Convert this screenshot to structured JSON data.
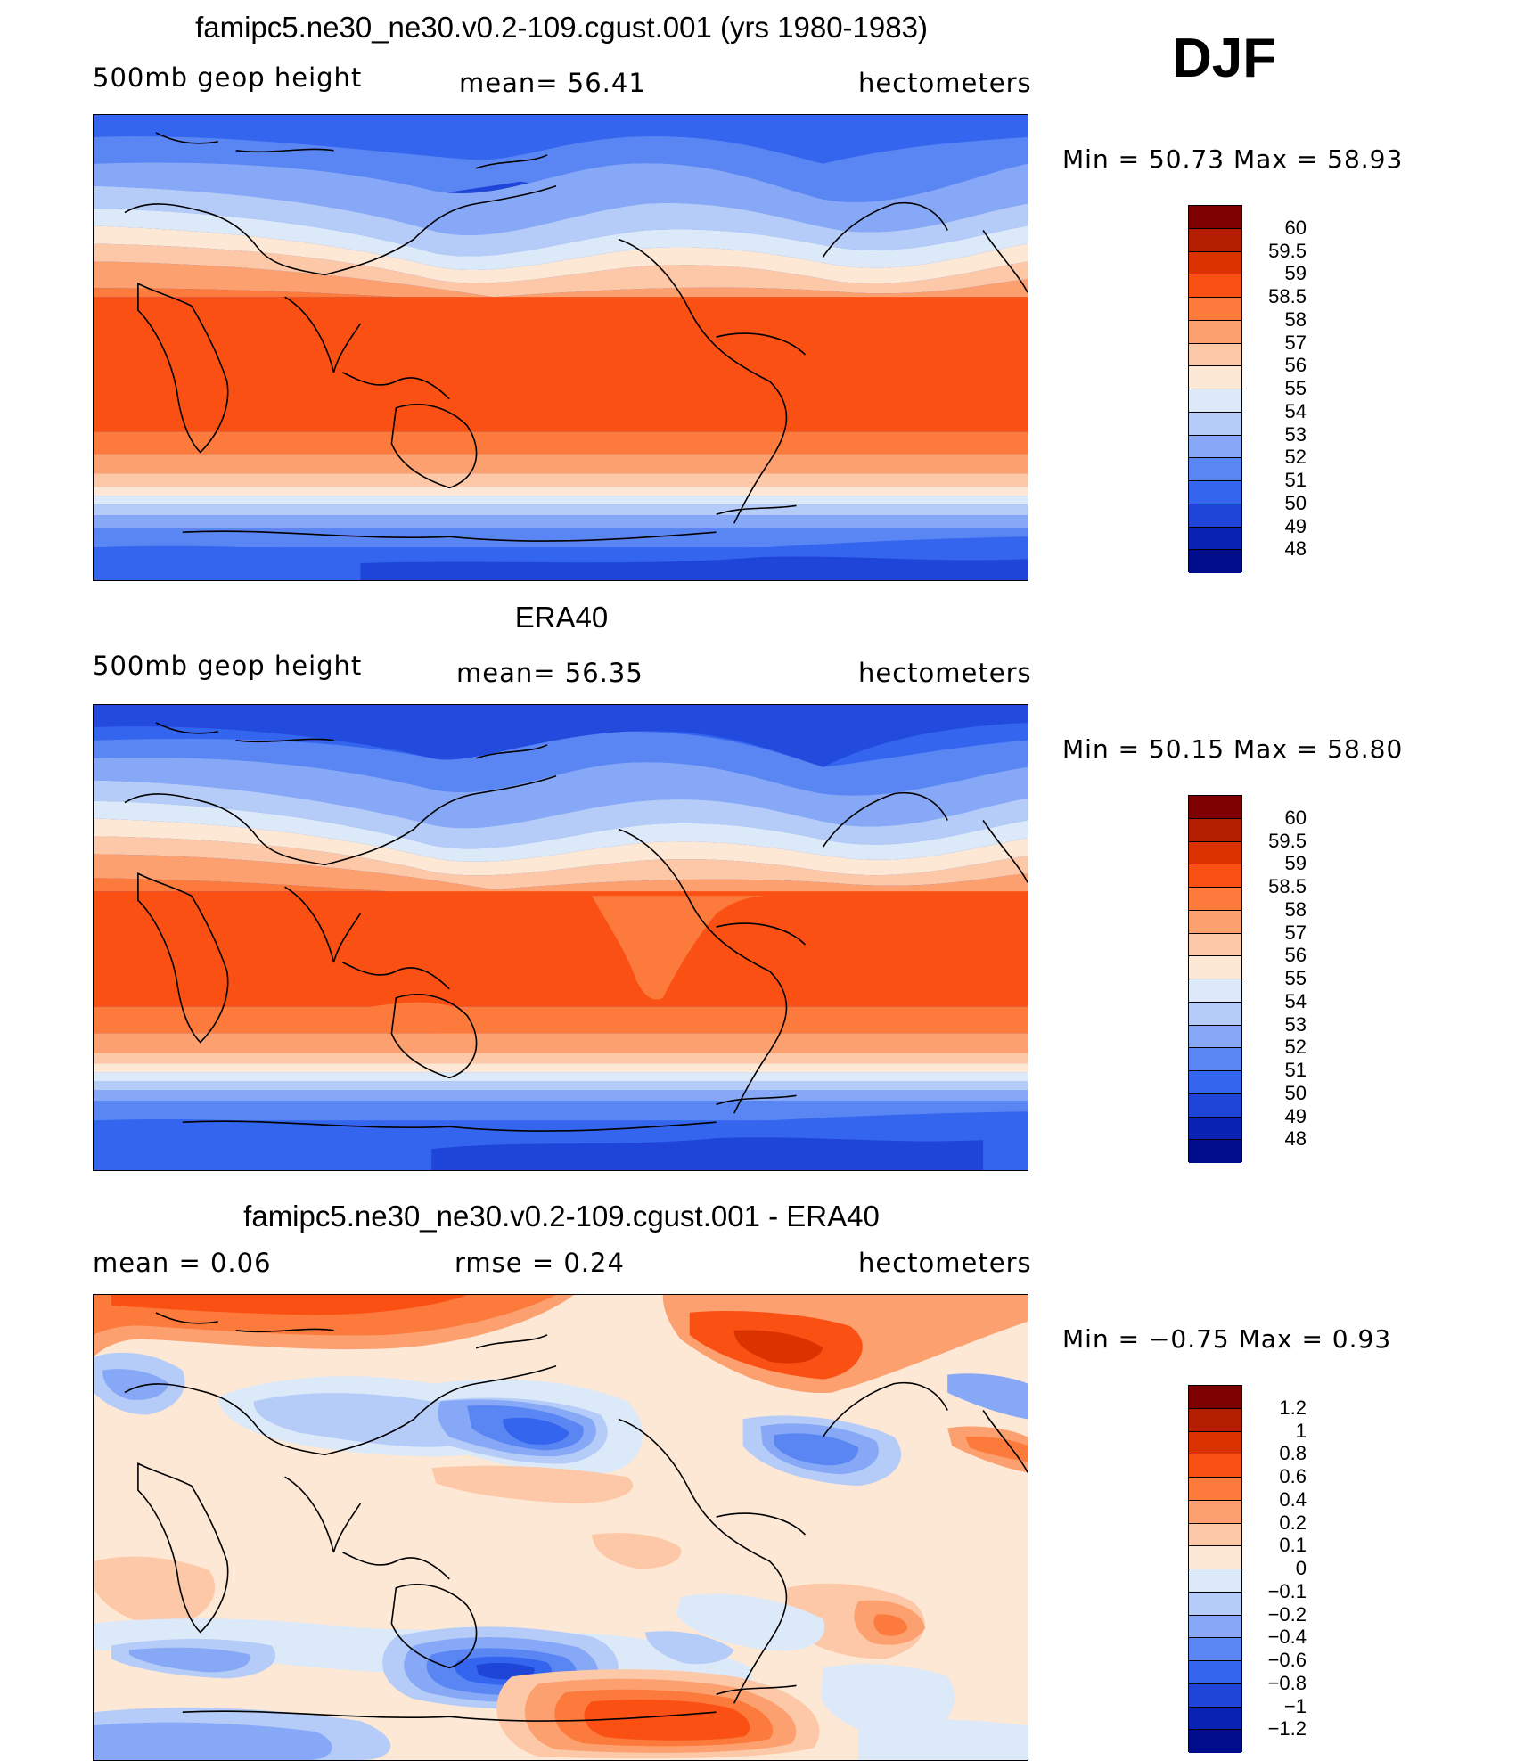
{
  "season": "DJF",
  "panels": [
    {
      "title": "famipc5.ne30_ne30.v0.2-109.cgust.001 (yrs 1980-1983)",
      "left_label": "500mb  geop  height",
      "center_label": "mean=   56.41",
      "right_label": "hectometers",
      "minmax": "Min  =    50.73  Max  =    58.93",
      "colorbar": {
        "levels": [
          "60",
          "59.5",
          "59",
          "58.5",
          "58",
          "57",
          "56",
          "55",
          "54",
          "53",
          "52",
          "51",
          "50",
          "49",
          "48"
        ],
        "colors": [
          "#7f0000",
          "#b31e00",
          "#db3300",
          "#fa5014",
          "#fb7a3c",
          "#fca070",
          "#fdc8a8",
          "#fde8d6",
          "#dce9f9",
          "#b5ccf8",
          "#86a8f6",
          "#5a86f4",
          "#3465ee",
          "#1e44d8",
          "#0a22b4",
          "#000c8c"
        ]
      }
    },
    {
      "title": "ERA40",
      "left_label": "500mb  geop  height",
      "center_label": "mean=   56.35",
      "right_label": "hectometers",
      "minmax": "Min  =    50.15  Max  =    58.80",
      "colorbar": {
        "levels": [
          "60",
          "59.5",
          "59",
          "58.5",
          "58",
          "57",
          "56",
          "55",
          "54",
          "53",
          "52",
          "51",
          "50",
          "49",
          "48"
        ],
        "colors": [
          "#7f0000",
          "#b31e00",
          "#db3300",
          "#fa5014",
          "#fb7a3c",
          "#fca070",
          "#fdc8a8",
          "#fde8d6",
          "#dce9f9",
          "#b5ccf8",
          "#86a8f6",
          "#5a86f4",
          "#3465ee",
          "#1e44d8",
          "#0a22b4",
          "#000c8c"
        ]
      }
    },
    {
      "title": "famipc5.ne30_ne30.v0.2-109.cgust.001 - ERA40",
      "left_label": "mean  =     0.06",
      "center_label": "rmse  =     0.24",
      "right_label": "hectometers",
      "minmax": "Min  =    −0.75  Max  =      0.93",
      "colorbar": {
        "levels": [
          "1.2",
          "1",
          "0.8",
          "0.6",
          "0.4",
          "0.2",
          "0.1",
          "0",
          "−0.1",
          "−0.2",
          "−0.4",
          "−0.6",
          "−0.8",
          "−1",
          "−1.2"
        ],
        "colors": [
          "#7f0000",
          "#b31e00",
          "#db3300",
          "#fa5014",
          "#fb7a3c",
          "#fca070",
          "#fdc8a8",
          "#fde8d6",
          "#dce9f9",
          "#b5ccf8",
          "#86a8f6",
          "#5a86f4",
          "#3465ee",
          "#1e44d8",
          "#0a22b4",
          "#000c8c"
        ]
      }
    }
  ],
  "chart_data": [
    {
      "type": "heatmap",
      "title": "famipc5.ne30_ne30.v0.2-109.cgust.001 (yrs 1980-1983)",
      "variable": "500mb  geop  height",
      "units": "hectometers",
      "mean": 56.41,
      "min": 50.73,
      "max": 58.93,
      "contour_levels": [
        48,
        49,
        50,
        51,
        52,
        53,
        54,
        55,
        56,
        57,
        58,
        58.5,
        59,
        59.5,
        60
      ]
    },
    {
      "type": "heatmap",
      "title": "ERA40",
      "variable": "500mb  geop  height",
      "units": "hectometers",
      "mean": 56.35,
      "min": 50.15,
      "max": 58.8,
      "contour_levels": [
        48,
        49,
        50,
        51,
        52,
        53,
        54,
        55,
        56,
        57,
        58,
        58.5,
        59,
        59.5,
        60
      ]
    },
    {
      "type": "heatmap",
      "title": "famipc5.ne30_ne30.v0.2-109.cgust.001 - ERA40",
      "units": "hectometers",
      "mean": 0.06,
      "rmse": 0.24,
      "min": -0.75,
      "max": 0.93,
      "contour_levels": [
        -1.2,
        -1,
        -0.8,
        -0.6,
        -0.4,
        -0.2,
        -0.1,
        0,
        0.1,
        0.2,
        0.4,
        0.6,
        0.8,
        1,
        1.2
      ]
    }
  ]
}
